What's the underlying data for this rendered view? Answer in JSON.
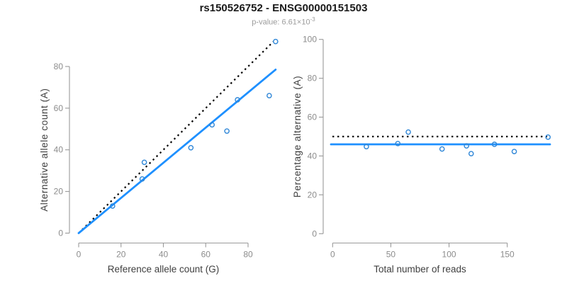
{
  "title": "rs150526752 - ENSG00000151503",
  "subtitle": {
    "text": "p-value: 6.61×10",
    "exponent": "-3"
  },
  "colors": {
    "points": "#2e86d7",
    "fit_line": "#1e90ff",
    "reference_line": "#000000",
    "axis": "#999999",
    "tick_label": "#8c8c8c",
    "axis_title": "#3f3f3f",
    "title": "#1a1a1a",
    "subtitle": "#9b9b9b",
    "background": "#ffffff"
  },
  "chart_data": [
    {
      "type": "scatter",
      "name": "allele-counts",
      "title": "",
      "xlabel": "Reference allele count (G)",
      "ylabel": "Alternative allele count (A)",
      "xlim": [
        0,
        96
      ],
      "ylim": [
        0,
        96
      ],
      "xticks": [
        0,
        20,
        40,
        60,
        80
      ],
      "yticks": [
        0,
        20,
        40,
        60,
        80
      ],
      "grid": false,
      "legend": "none",
      "points": [
        [
          16,
          13
        ],
        [
          30,
          26
        ],
        [
          31,
          34
        ],
        [
          53,
          41
        ],
        [
          63,
          52
        ],
        [
          70,
          49
        ],
        [
          75,
          64
        ],
        [
          90,
          66
        ],
        [
          93,
          92
        ]
      ],
      "fit_line": {
        "type": "segment",
        "from": [
          0,
          0
        ],
        "to": [
          93,
          78.5
        ]
      },
      "reference_line": {
        "type": "segment",
        "from": [
          0,
          0
        ],
        "to": [
          92,
          92
        ]
      }
    },
    {
      "type": "scatter",
      "name": "percentage-vs-reads",
      "title": "",
      "xlabel": "Total number of reads",
      "ylabel": "Percentage alternative (A)",
      "xlim": [
        0,
        192
      ],
      "ylim": [
        0,
        100
      ],
      "xticks": [
        0,
        50,
        100,
        150
      ],
      "yticks": [
        0,
        20,
        40,
        60,
        80,
        100
      ],
      "grid": false,
      "legend": "none",
      "points": [
        [
          29,
          44.8
        ],
        [
          56,
          46.4
        ],
        [
          65,
          52.3
        ],
        [
          94,
          43.6
        ],
        [
          115,
          45.2
        ],
        [
          119,
          41.2
        ],
        [
          139,
          46.0
        ],
        [
          156,
          42.3
        ],
        [
          185,
          49.7
        ]
      ],
      "fit_line": {
        "type": "horizontal",
        "y": 46
      },
      "reference_line": {
        "type": "horizontal",
        "y": 50
      }
    }
  ]
}
